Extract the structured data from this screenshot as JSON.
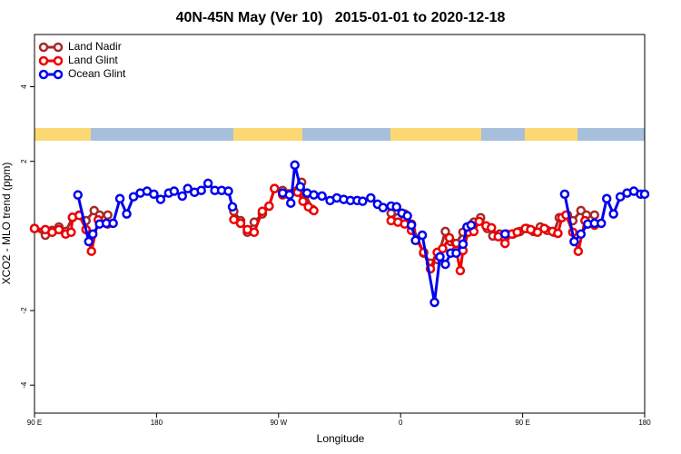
{
  "chart_data": {
    "type": "line",
    "title": "40N-45N May (Ver 10)   2015-01-01 to 2020-12-18",
    "xlabel": "Longitude",
    "ylabel": "XCO2 - MLO trend (ppm)",
    "xlim": [
      90,
      540
    ],
    "xticks": [
      {
        "value": 90,
        "label": "90 E"
      },
      180,
      {
        "value": 270,
        "label": "90 W"
      },
      {
        "value": 360,
        "label": "0"
      },
      {
        "value": 450,
        "label": "90 E"
      },
      {
        "value": 540,
        "label": "180"
      }
    ],
    "ylim": [
      -4.75,
      5.4
    ],
    "yticks": [
      -4,
      -2,
      2,
      4
    ],
    "legend": "top-left",
    "series": [
      {
        "name": "Land Nadir",
        "color": "#a52a2a",
        "x": [
          90,
          98,
          103,
          108,
          113,
          118,
          123,
          128,
          134,
          138,
          144,
          190,
          237,
          242,
          247,
          252,
          258,
          263,
          267,
          273,
          284,
          287,
          290,
          295,
          320,
          353,
          358,
          363,
          368,
          377,
          382,
          387,
          393,
          397,
          401,
          406,
          410,
          414,
          419,
          424,
          428,
          433,
          438,
          443,
          448,
          453,
          458,
          463,
          468,
          473,
          477,
          483,
          487,
          493,
          497,
          503
        ],
        "values": [
          0.2,
          0.02,
          0.15,
          0.24,
          0.12,
          0.49,
          0.56,
          0.41,
          0.68,
          0.56,
          0.56,
          null,
          0.66,
          0.41,
          0.1,
          0.37,
          0.59,
          0.8,
          1.27,
          1.22,
          1.22,
          1.44,
          1.1,
          0.71,
          null,
          0.61,
          0.49,
          0.59,
          0.32,
          -0.46,
          -0.73,
          -0.63,
          0.12,
          -0.15,
          -0.2,
          0.1,
          0.22,
          0.37,
          0.49,
          0.2,
          0,
          0.05,
          0.05,
          0.05,
          0.12,
          0.2,
          0.12,
          0.24,
          0.15,
          0.1,
          0.49,
          0.56,
          0.41,
          0.68,
          0.56,
          0.56
        ]
      },
      {
        "name": "Land Glint",
        "color": "#ee0000",
        "x": [
          90,
          98,
          103,
          108,
          113,
          117,
          118,
          123,
          128,
          132,
          137,
          144,
          190,
          237,
          242,
          247,
          252,
          258,
          263,
          267,
          273,
          284,
          288,
          292,
          296,
          320,
          353,
          358,
          363,
          368,
          377,
          382,
          387,
          391,
          396,
          401,
          404,
          406,
          410,
          414,
          418,
          423,
          427,
          432,
          437,
          442,
          446,
          452,
          456,
          461,
          466,
          472,
          476,
          479,
          482,
          487,
          491,
          496,
          503
        ],
        "values": [
          0.2,
          0.17,
          0.1,
          0.17,
          0.05,
          0.1,
          0.5,
          0.55,
          0.17,
          -0.41,
          0.43,
          0.32,
          null,
          0.44,
          0.34,
          0.17,
          0.1,
          0.66,
          0.8,
          1.27,
          1.1,
          1.17,
          0.93,
          0.78,
          0.68,
          null,
          0.41,
          0.37,
          0.32,
          0.15,
          -0.44,
          -0.88,
          -0.44,
          -0.34,
          -0.05,
          -0.39,
          -0.93,
          -0.39,
          0.1,
          0.12,
          0.39,
          0.27,
          0.22,
          -0.02,
          -0.2,
          0.05,
          0.1,
          0.2,
          0.17,
          0.1,
          0.2,
          0.12,
          0.07,
          0.49,
          0.56,
          0.1,
          -0.41,
          0.41,
          0.29
        ]
      },
      {
        "name": "Ocean Glint",
        "color": "#0000ee",
        "x": [
          122,
          130,
          133,
          138,
          143,
          148,
          153,
          158,
          163,
          168,
          173,
          178,
          183,
          189,
          193,
          199,
          203,
          208,
          213,
          218,
          223,
          228,
          233,
          236,
          255,
          273,
          278,
          279,
          282,
          286,
          291,
          296,
          302,
          308,
          313,
          318,
          323,
          328,
          332,
          338,
          343,
          347,
          353,
          357,
          361,
          365,
          368,
          371,
          376,
          385,
          389,
          393,
          397,
          401,
          406,
          409,
          412,
          425,
          437,
          460,
          481,
          488,
          493,
          498,
          503,
          508,
          512,
          517,
          522,
          527,
          532,
          537,
          540
        ],
        "values": [
          1.1,
          -0.15,
          0.05,
          0.32,
          0.34,
          0.34,
          1.0,
          0.59,
          1.05,
          1.15,
          1.2,
          1.12,
          0.98,
          1.15,
          1.2,
          1.07,
          1.27,
          1.17,
          1.22,
          1.41,
          1.22,
          1.22,
          1.2,
          0.78,
          null,
          1.15,
          1.1,
          0.88,
          1.9,
          1.32,
          1.15,
          1.1,
          1.07,
          0.95,
          1.02,
          0.98,
          0.95,
          0.95,
          0.93,
          1.02,
          0.85,
          0.76,
          0.8,
          0.78,
          0.61,
          0.54,
          0.29,
          -0.12,
          0.02,
          -1.78,
          -0.56,
          -0.76,
          -0.46,
          -0.46,
          -0.22,
          0.24,
          0.29,
          null,
          0.05,
          null,
          1.12,
          -0.15,
          0.05,
          0.32,
          0.34,
          0.34,
          1.0,
          0.59,
          1.05,
          1.15,
          1.2,
          1.12,
          1.12
        ]
      }
    ]
  }
}
